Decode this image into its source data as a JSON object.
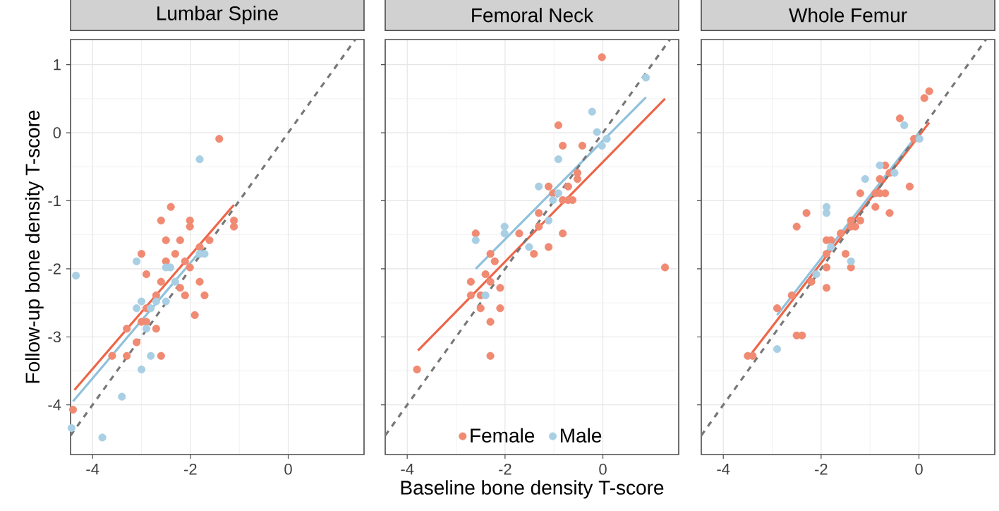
{
  "chart_data": [
    {
      "type": "scatter",
      "title": "Lumbar Spine",
      "ylabel": "Follow-up bone density T-score",
      "xlim": [
        -4.45,
        1.55
      ],
      "ylim": [
        -4.73,
        1.37
      ],
      "xticks": [
        -4,
        -2,
        0
      ],
      "yticks": [
        -4,
        -3,
        -2,
        -1,
        0,
        1
      ],
      "grid": true,
      "legend": false,
      "series": [
        {
          "marker": "circle",
          "color": "#f08a72",
          "x": [
            -1.41,
            -2.4,
            -2.6,
            -2.01,
            -2.01,
            -1.11,
            -1.11,
            -2.5,
            -2.21,
            -1.61,
            -1.81,
            -3.0,
            -2.31,
            -2.5,
            -2.11,
            -2.01,
            -2.9,
            -2.6,
            -1.81,
            -2.21,
            -2.11,
            -1.71,
            -2.7,
            -2.9,
            -1.91,
            -3.0,
            -2.9,
            -2.7,
            -3.3,
            -3.1,
            -3.6,
            -3.3,
            -2.6,
            -4.4
          ],
          "values": [
            -0.09,
            -1.09,
            -1.29,
            -1.29,
            -1.38,
            -1.29,
            -1.38,
            -1.58,
            -1.58,
            -1.58,
            -1.68,
            -1.78,
            -1.78,
            -1.89,
            -1.89,
            -1.98,
            -2.08,
            -2.19,
            -2.19,
            -2.28,
            -2.39,
            -2.39,
            -2.39,
            -2.58,
            -2.68,
            -2.78,
            -2.78,
            -2.88,
            -2.88,
            -3.08,
            -3.28,
            -3.28,
            -3.28,
            -4.07
          ]
        },
        {
          "marker": "circle",
          "color": "#a9cfe4",
          "x": [
            -1.81,
            -3.1,
            -2.5,
            -2.41,
            -2.31,
            -1.71,
            -1.81,
            -3.0,
            -3.1,
            -2.7,
            -2.5,
            -2.81,
            -2.9,
            -2.81,
            -3.0,
            -3.4,
            -3.8,
            -4.34,
            -4.43
          ],
          "values": [
            -0.39,
            -1.89,
            -1.98,
            -1.98,
            -2.19,
            -1.78,
            -1.78,
            -2.48,
            -2.58,
            -2.48,
            -2.48,
            -2.58,
            -2.88,
            -3.28,
            -3.48,
            -3.88,
            -4.48,
            -2.1,
            -4.34
          ]
        },
        {
          "type": "line",
          "marker": "none",
          "color": "#8fc1dc",
          "x": [
            -4.4,
            -1.75
          ],
          "values": [
            -3.95,
            -1.7
          ]
        },
        {
          "type": "line",
          "marker": "none",
          "color": "#ee6548",
          "x": [
            -4.37,
            -1.11
          ],
          "values": [
            -3.78,
            -1.06
          ]
        },
        {
          "type": "line",
          "marker": "none",
          "color": "#777777",
          "line_style": "dashed",
          "x": [
            -4.45,
            1.37
          ],
          "values": [
            -4.45,
            1.37
          ]
        }
      ]
    },
    {
      "type": "scatter",
      "title": "Femoral Neck",
      "xlabel": "Baseline bone density T-score",
      "xlim": [
        -4.45,
        1.55
      ],
      "ylim": [
        -4.73,
        1.37
      ],
      "xticks": [
        -4,
        -2,
        0
      ],
      "yticks": [
        -4,
        -3,
        -2,
        -1,
        0,
        1
      ],
      "tick_labels": "x",
      "grid": true,
      "legend": "bottom",
      "series": [
        {
          "name": "Female",
          "marker": "circle",
          "color": "#f08a72",
          "x": [
            -0.02,
            1.27,
            -0.91,
            -0.82,
            -0.42,
            -0.52,
            -0.52,
            -1.11,
            -0.71,
            -1.02,
            -0.82,
            -0.71,
            -0.62,
            -1.31,
            -1.31,
            -1.71,
            -0.82,
            -2.6,
            -1.11,
            -1.41,
            -2.3,
            -2.21,
            -2.4,
            -2.3,
            -2.7,
            -2.1,
            -2.7,
            -2.5,
            -2.5,
            -2.1,
            -2.3,
            -2.3,
            -3.8
          ],
          "values": [
            1.11,
            -1.98,
            0.11,
            -0.19,
            -0.19,
            -0.59,
            -0.68,
            -0.79,
            -0.79,
            -0.89,
            -0.99,
            -0.99,
            -0.99,
            -1.18,
            -1.38,
            -1.48,
            -1.48,
            -1.48,
            -1.68,
            -1.78,
            -1.78,
            -1.89,
            -2.08,
            -2.19,
            -2.19,
            -2.28,
            -2.39,
            -2.39,
            -2.58,
            -2.58,
            -2.78,
            -3.28,
            -3.48
          ]
        },
        {
          "name": "Male",
          "marker": "circle",
          "color": "#a9cfe4",
          "x": [
            0.88,
            -0.22,
            -0.12,
            -0.02,
            0.08,
            -0.91,
            -1.31,
            -0.91,
            -1.02,
            -1.11,
            -2.01,
            -2.01,
            -1.51,
            -2.6,
            -2.4
          ],
          "values": [
            0.81,
            0.31,
            0.01,
            -0.19,
            -0.09,
            -0.39,
            -0.79,
            -0.89,
            -0.99,
            -1.29,
            -1.38,
            -1.48,
            -1.68,
            -1.58,
            -2.39
          ]
        },
        {
          "type": "line",
          "marker": "none",
          "color": "#ee6548",
          "x": [
            -3.78,
            1.27
          ],
          "values": [
            -3.2,
            0.5
          ]
        },
        {
          "type": "line",
          "marker": "none",
          "color": "#8fc1dc",
          "x": [
            -2.6,
            0.88
          ],
          "values": [
            -2.0,
            0.52
          ]
        },
        {
          "type": "line",
          "marker": "none",
          "color": "#777777",
          "line_style": "dashed",
          "x": [
            -4.45,
            1.37
          ],
          "values": [
            -4.45,
            1.37
          ]
        }
      ]
    },
    {
      "type": "scatter",
      "title": "Whole Femur",
      "xlim": [
        -4.45,
        1.55
      ],
      "ylim": [
        -4.73,
        1.37
      ],
      "xticks": [
        -4,
        -2,
        0
      ],
      "yticks": [
        -4,
        -3,
        -2,
        -1,
        0,
        1
      ],
      "tick_labels": "x",
      "grid": true,
      "legend": false,
      "series": [
        {
          "marker": "circle",
          "color": "#f08a72",
          "x": [
            0.21,
            0.11,
            -0.39,
            -0.1,
            -0.69,
            -0.6,
            -0.19,
            -0.8,
            -1.2,
            -0.89,
            -0.8,
            -0.69,
            -0.89,
            -0.6,
            -2.3,
            -2.5,
            -1.39,
            -1.2,
            -1.39,
            -1.3,
            -1.6,
            -1.89,
            -1.8,
            -1.89,
            -1.5,
            -1.39,
            -1.89,
            -2.2,
            -1.89,
            -2.6,
            -2.9,
            -2.5,
            -2.39,
            -3.5,
            -3.4
          ],
          "values": [
            0.61,
            0.51,
            0.21,
            -0.09,
            -0.48,
            -0.59,
            -0.79,
            -0.68,
            -0.89,
            -0.89,
            -0.89,
            -0.89,
            -1.09,
            -1.18,
            -1.18,
            -1.38,
            -1.29,
            -1.29,
            -1.38,
            -1.38,
            -1.48,
            -1.58,
            -1.58,
            -1.78,
            -1.78,
            -1.98,
            -1.98,
            -2.19,
            -2.28,
            -2.39,
            -2.58,
            -2.98,
            -2.98,
            -3.28,
            -3.28
          ]
        },
        {
          "marker": "circle",
          "color": "#a9cfe4",
          "x": [
            -0.3,
            0.01,
            -0.8,
            -0.5,
            -1.1,
            -1.89,
            -1.89,
            -1.8,
            -1.39,
            -2.1,
            -2.9
          ],
          "values": [
            0.11,
            -0.09,
            -0.48,
            -0.59,
            -0.68,
            -1.09,
            -1.18,
            -1.68,
            -1.89,
            -2.08,
            -3.18
          ]
        },
        {
          "type": "line",
          "marker": "none",
          "color": "#8fc1dc",
          "x": [
            -2.9,
            0.01
          ],
          "values": [
            -2.68,
            0.01
          ]
        },
        {
          "type": "line",
          "marker": "none",
          "color": "#ee6548",
          "x": [
            -3.45,
            0.21
          ],
          "values": [
            -3.27,
            0.15
          ]
        },
        {
          "type": "line",
          "marker": "none",
          "color": "#777777",
          "line_style": "dashed",
          "x": [
            -4.45,
            1.37
          ],
          "values": [
            -4.45,
            1.37
          ]
        }
      ]
    }
  ]
}
